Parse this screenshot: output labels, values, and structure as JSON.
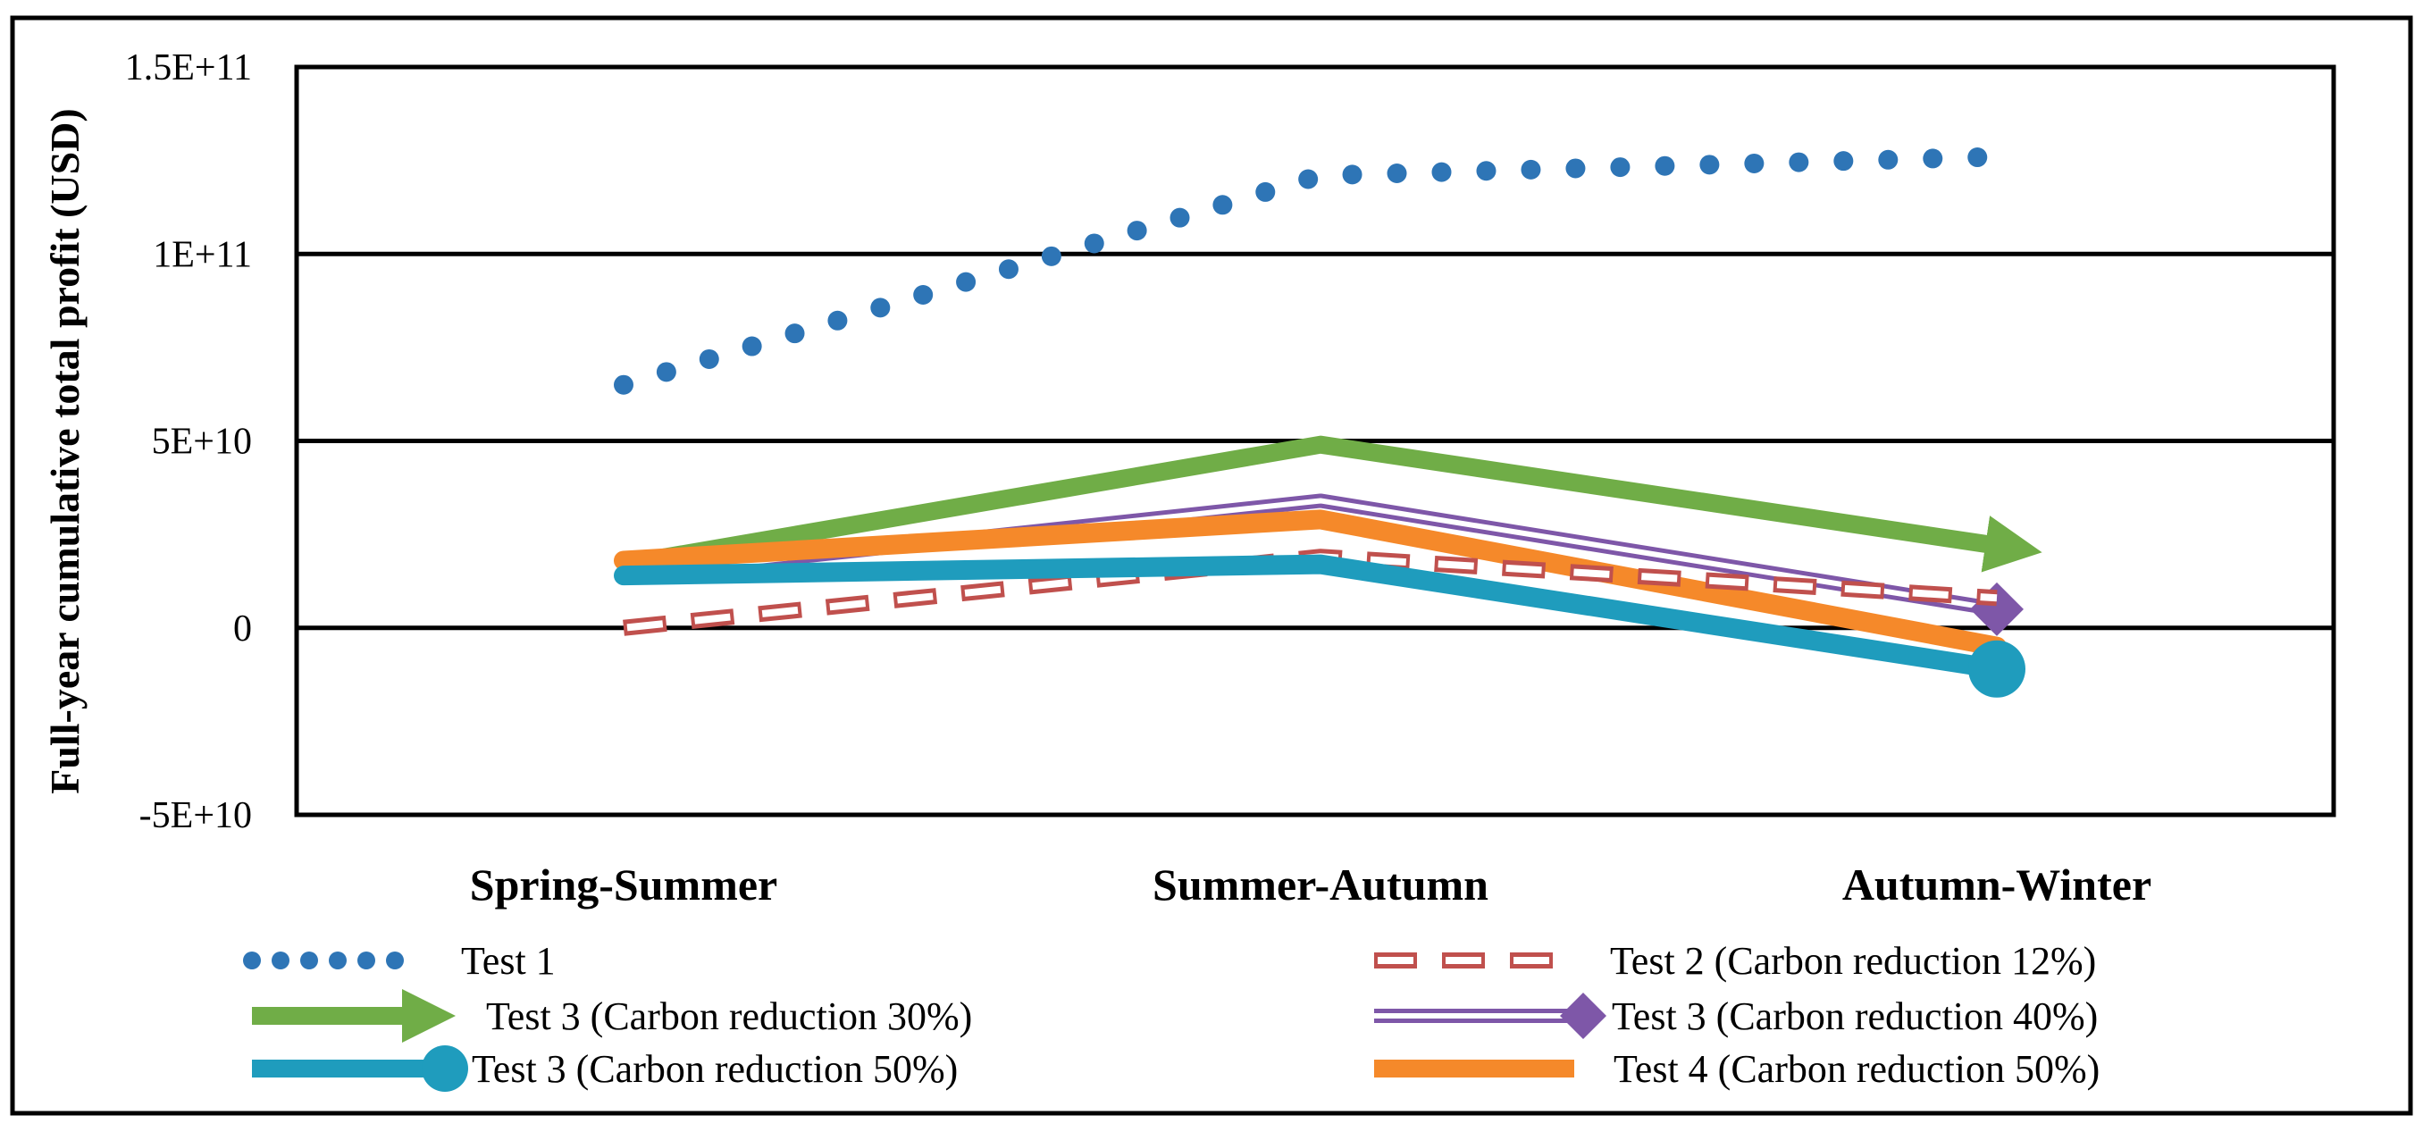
{
  "chart_data": {
    "type": "line",
    "title": "",
    "xlabel": "",
    "ylabel": "Full-year cumulative total profit (USD)",
    "categories": [
      "Spring-Summer",
      "Summer-Autumn",
      "Autumn-Winter"
    ],
    "ylim": [
      -50000000000,
      150000000000
    ],
    "yticks": [
      {
        "value": 150000000000,
        "label": "1.5E+11"
      },
      {
        "value": 100000000000,
        "label": "1E+11"
      },
      {
        "value": 50000000000,
        "label": "5E+10"
      },
      {
        "value": 0,
        "label": "0"
      },
      {
        "value": -50000000000,
        "label": "-5E+10"
      }
    ],
    "grid": true,
    "legend_position": "bottom",
    "series": [
      {
        "name": "Test 1",
        "values": [
          65000000000,
          121000000000,
          126000000000
        ],
        "color": "#2E75B6",
        "style": "dotted"
      },
      {
        "name": "Test 2 (Carbon reduction 12%)",
        "values": [
          0,
          19000000000,
          8000000000
        ],
        "color": "#C0504D",
        "style": "dashed-outline"
      },
      {
        "name": "Test 3 (Carbon reduction 30%)",
        "values": [
          17000000000,
          49000000000,
          22000000000
        ],
        "color": "#70AD47",
        "style": "solid-arrow"
      },
      {
        "name": "Test 3 (Carbon reduction 40%)",
        "values": [
          14000000000,
          34000000000,
          5000000000
        ],
        "color": "#7E57A8",
        "style": "double-diamond"
      },
      {
        "name": "Test 3 (Carbon reduction 50%)",
        "values": [
          14000000000,
          17000000000,
          -11000000000
        ],
        "color": "#1F9CBD",
        "style": "solid-circle"
      },
      {
        "name": "Test 4 (Carbon reduction 50%)",
        "values": [
          18000000000,
          29000000000,
          -5000000000
        ],
        "color": "#F5892A",
        "style": "solid"
      }
    ]
  }
}
